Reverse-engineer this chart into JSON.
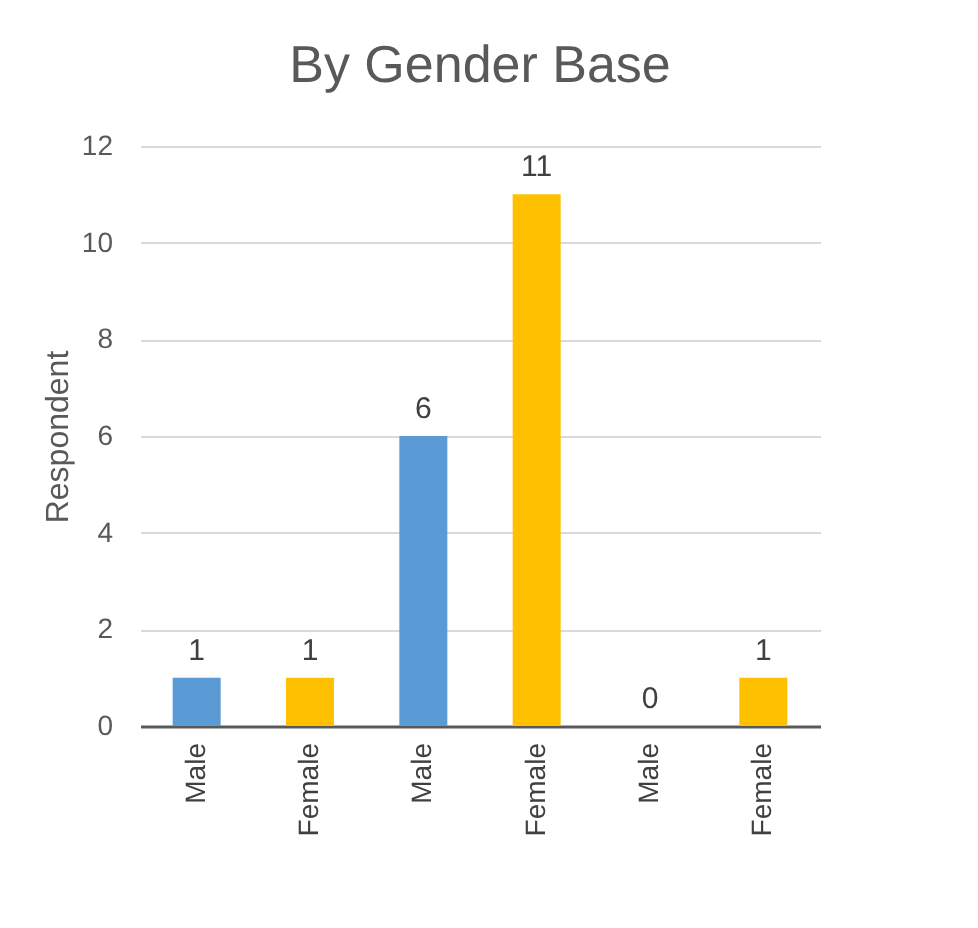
{
  "chart_data": {
    "type": "bar",
    "title": "By Gender Base",
    "ylabel": "Respondent",
    "categories": [
      "Male",
      "Female",
      "Male",
      "Female",
      "Male",
      "Female"
    ],
    "values": [
      1,
      1,
      6,
      11,
      0,
      1
    ],
    "colors": [
      "#5b9bd5",
      "#ffc000",
      "#5b9bd5",
      "#ffc000",
      "#5b9bd5",
      "#ffc000"
    ],
    "ylim": [
      0,
      12
    ],
    "yticks": [
      0,
      2,
      4,
      6,
      8,
      10,
      12
    ],
    "grid": "y",
    "data_labels": true
  }
}
